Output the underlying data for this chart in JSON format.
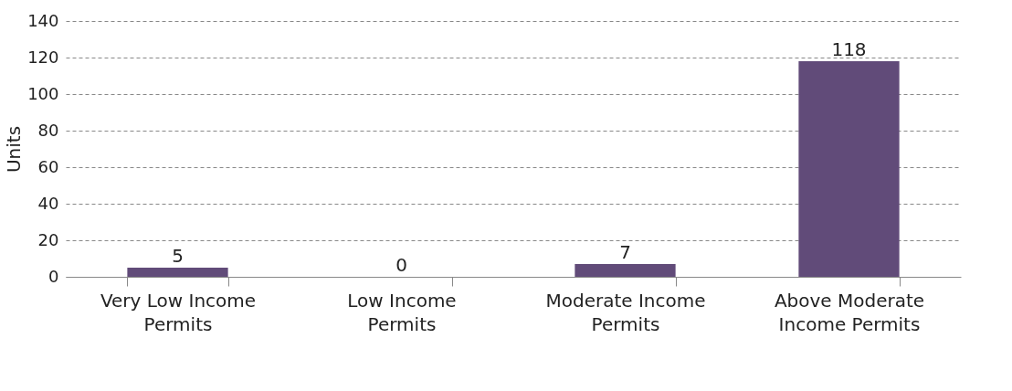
{
  "chart_data": {
    "type": "bar",
    "ylabel": "Units",
    "categories": [
      "Very Low Income Permits",
      "Low Income Permits",
      "Moderate Income Permits",
      "Above Moderate Income Permits"
    ],
    "values": [
      5,
      0,
      7,
      118
    ],
    "color": "#614b79",
    "ylim": [
      0,
      140
    ],
    "yticks": [
      0,
      20,
      40,
      60,
      80,
      100,
      120,
      140
    ],
    "grid": "y",
    "data_labels": true
  }
}
